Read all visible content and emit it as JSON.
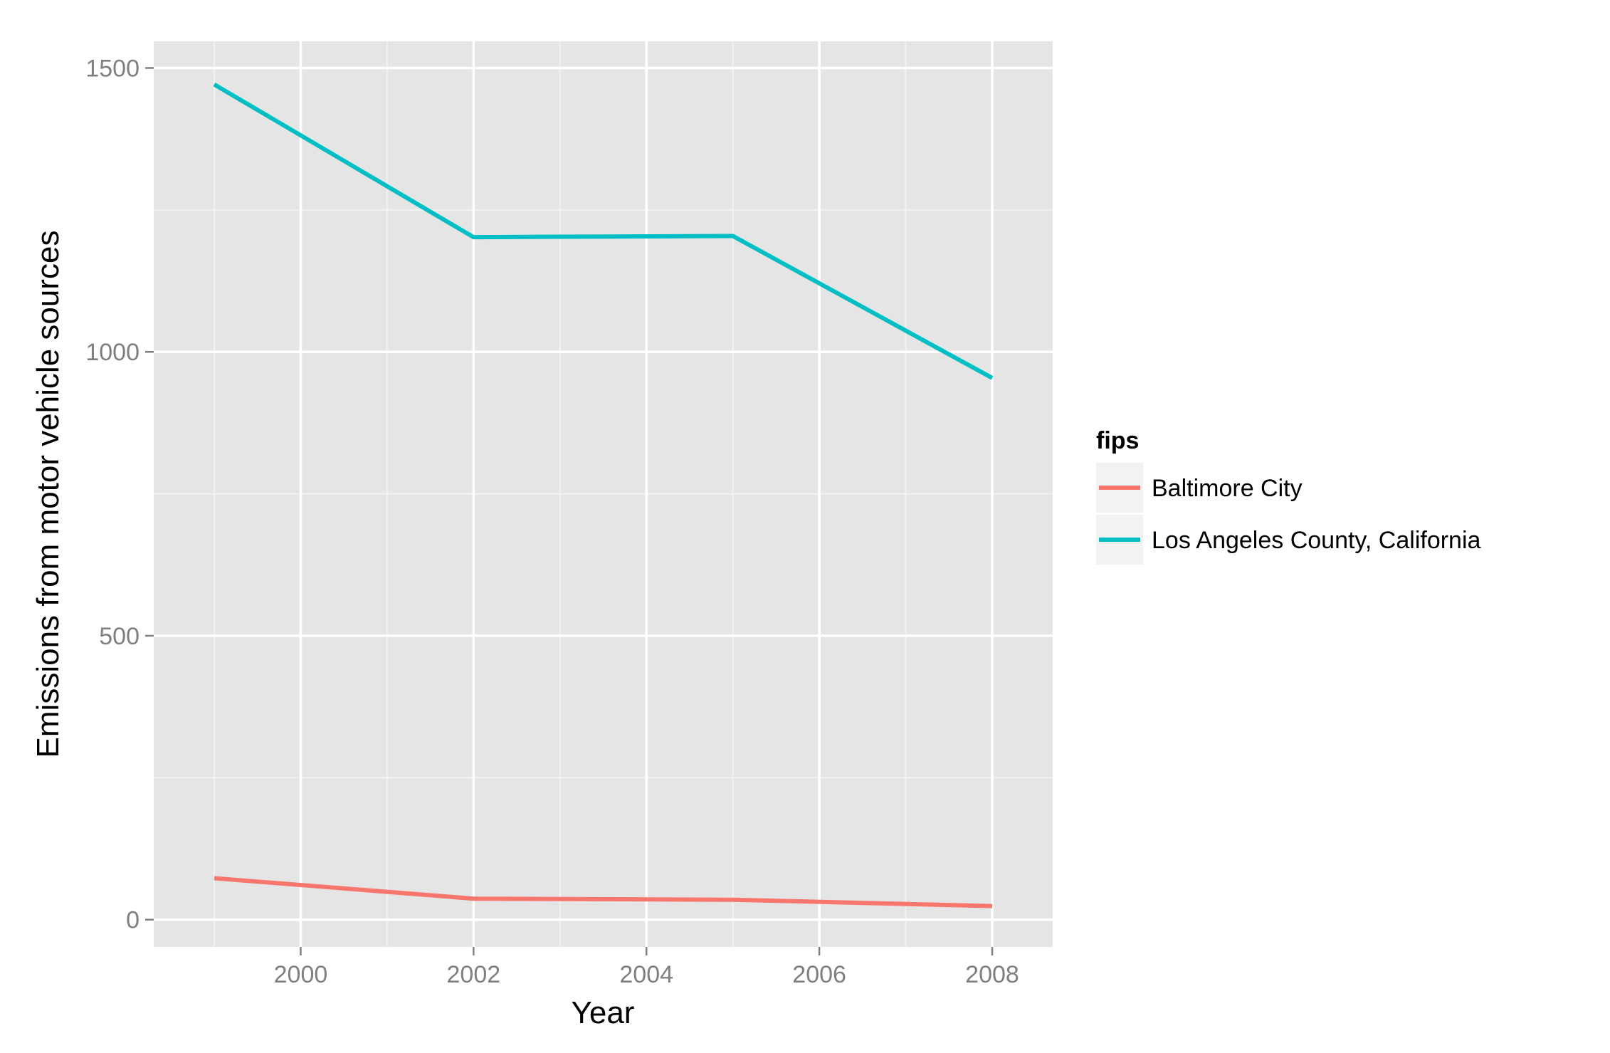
{
  "chart_data": {
    "type": "line",
    "title": "",
    "xlabel": "Year",
    "ylabel": "Emissions from motor vehicle sources",
    "x": [
      1999,
      2002,
      2005,
      2008
    ],
    "xlim": [
      1998.3,
      2008.7
    ],
    "ylim": [
      -48,
      1547
    ],
    "x_ticks": [
      2000,
      2002,
      2004,
      2006,
      2008
    ],
    "y_ticks": [
      0,
      500,
      1000,
      1500
    ],
    "x_tick_labels": [
      "2000",
      "2002",
      "2004",
      "2006",
      "2008"
    ],
    "y_tick_labels": [
      "0",
      "500",
      "1000",
      "1500"
    ],
    "grid": true,
    "legend": {
      "title": "fips",
      "position": "right"
    },
    "series": [
      {
        "name": "Baltimore City",
        "color": "#F8766D",
        "values": [
          73,
          37,
          35,
          24
        ]
      },
      {
        "name": "Los Angeles County, California",
        "color": "#00BFC4",
        "values": [
          1471,
          1202,
          1204,
          954
        ]
      }
    ]
  },
  "colors": {
    "panel_background": "#E5E5E5",
    "grid_major": "#FFFFFF",
    "grid_minor": "#F2F2F2",
    "tick_text": "#7F7F7F",
    "axis_title": "#000000",
    "legend_key_background": "#F2F2F2"
  }
}
